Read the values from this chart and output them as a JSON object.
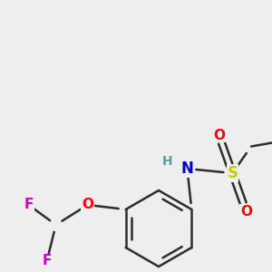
{
  "bg_color": "#eeeeee",
  "bond_color": "#2d2d2d",
  "bond_width": 1.8,
  "atom_colors": {
    "S": "#cccc00",
    "O": "#ff0000",
    "N": "#0000cc",
    "H": "#5f9ea0",
    "F": "#cc00cc",
    "C": "#2d2d2d"
  },
  "font_size": 10,
  "font_size_small": 9
}
